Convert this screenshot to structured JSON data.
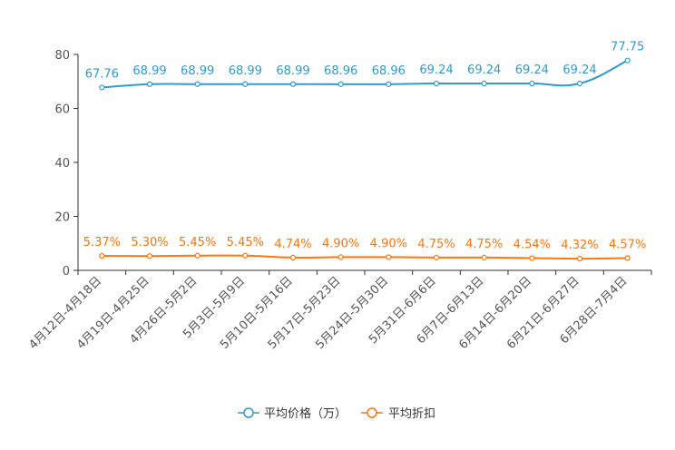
{
  "chart_data": {
    "type": "line",
    "categories": [
      "4月12日-4月18日",
      "4月19日-4月25日",
      "4月26日-5月2日",
      "5月3日-5月9日",
      "5月10日-5月16日",
      "5月17日-5月23日",
      "5月24日-5月30日",
      "5月31日-6月6日",
      "6月7日-6月13日",
      "6月14日-6月20日",
      "6月21日-6月27日",
      "6月28日-7月4日"
    ],
    "ylim": [
      0,
      80
    ],
    "yticks": [
      0,
      20,
      40,
      60,
      80
    ],
    "series": [
      {
        "name": "平均价格（万）",
        "color": "#3399cc",
        "values": [
          67.76,
          68.99,
          68.99,
          68.99,
          68.99,
          68.96,
          68.96,
          69.24,
          69.24,
          69.24,
          69.24,
          77.75
        ],
        "labels": [
          "67.76",
          "68.99",
          "68.99",
          "68.99",
          "68.99",
          "68.96",
          "68.96",
          "69.24",
          "69.24",
          "69.24",
          "69.24",
          "77.75"
        ]
      },
      {
        "name": "平均折扣",
        "color": "#ff7711",
        "values": [
          5.37,
          5.3,
          5.45,
          5.45,
          4.74,
          4.9,
          4.9,
          4.75,
          4.75,
          4.54,
          4.32,
          4.57
        ],
        "labels": [
          "5.37%",
          "5.30%",
          "5.45%",
          "5.45%",
          "4.74%",
          "4.90%",
          "4.90%",
          "4.75%",
          "4.75%",
          "4.54%",
          "4.32%",
          "4.57%"
        ]
      }
    ]
  }
}
